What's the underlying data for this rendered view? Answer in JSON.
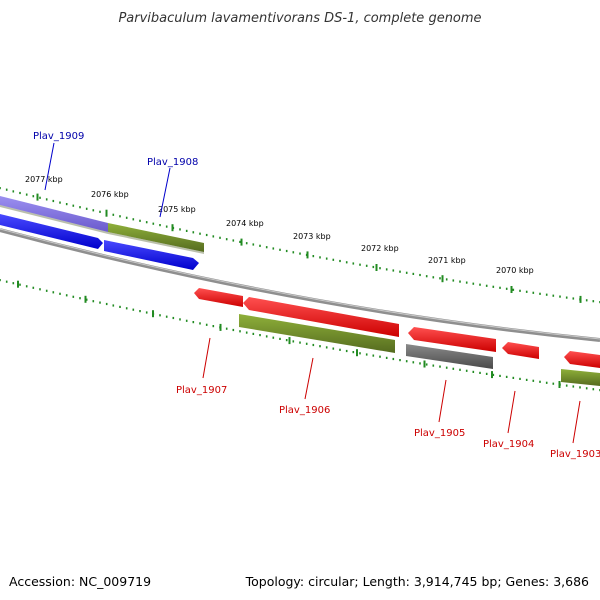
{
  "title": "Parvibaculum lavamentivorans DS-1, complete genome",
  "footer": {
    "accession": "Accession: NC_009719",
    "summary": "Topology: circular; Length: 3,914,745 bp; Genes: 3,686"
  },
  "ruler_labels": [
    "2077 kbp",
    "2076 kbp",
    "2075 kbp",
    "2074 kbp",
    "2073 kbp",
    "2072 kbp",
    "2071 kbp",
    "2070 kbp"
  ],
  "genes_top": [
    {
      "label": "Plav_1909",
      "color": "#0000aa"
    },
    {
      "label": "Plav_1908",
      "color": "#0000aa"
    }
  ],
  "genes_bottom": [
    {
      "label": "Plav_1907",
      "color": "#cc0000"
    },
    {
      "label": "Plav_1906",
      "color": "#cc0000"
    },
    {
      "label": "Plav_1905",
      "color": "#cc0000"
    },
    {
      "label": "Plav_1904",
      "color": "#cc0000"
    },
    {
      "label": "Plav_1903",
      "color": "#cc0000"
    }
  ],
  "colors": {
    "forward_gene": "#0000ee",
    "forward_gene_faded": "#7b68ee",
    "reverse_gene": "#ee0000",
    "cds_feature": "#6b8e23",
    "pseudo_feature": "#555555",
    "backbone": "#888888",
    "ticks": "#228b22"
  }
}
